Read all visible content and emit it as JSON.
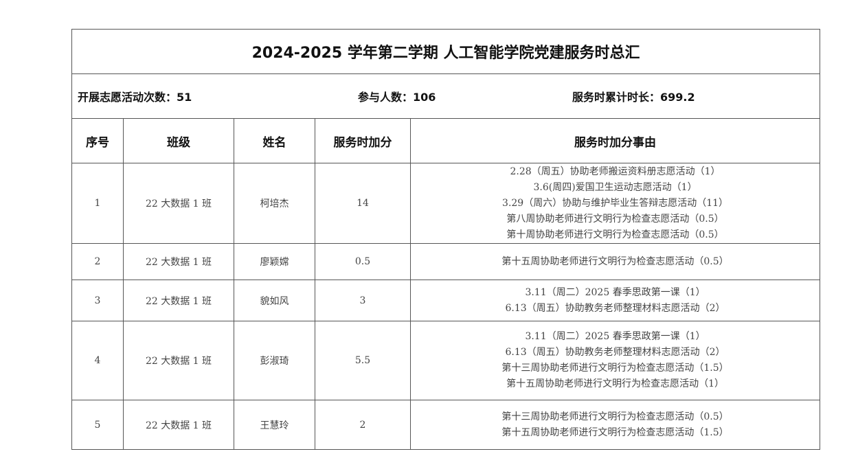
{
  "title": "2024-2025 学年第二学期 人工智能学院党建服务时总汇",
  "summary": {
    "activities_label": "开展志愿活动次数：",
    "activities_value": "51",
    "participants_label": "参与人数：",
    "participants_value": "106",
    "hours_label": "服务时累计时长：",
    "hours_value": "699.2"
  },
  "headers": [
    "序号",
    "班级",
    "姓名",
    "服务时加分",
    "服务时加分事由"
  ],
  "rows": [
    {
      "no": "1",
      "class": "22 大数据 1 班",
      "name": "柯培杰",
      "points": "14",
      "reasons": [
        "2.28（周五）协助老师搬运资料册志愿活动（1）",
        "3.6(周四)爱国卫生运动志愿活动（1）",
        "3.29（周六）协助与维护毕业生答辩志愿活动（11）",
        "第八周协助老师进行文明行为检查志愿活动（0.5）",
        "第十周协助老师进行文明行为检查志愿活动（0.5）"
      ]
    },
    {
      "no": "2",
      "class": "22 大数据 1 班",
      "name": "廖颖嫦",
      "points": "0.5",
      "reasons": [
        "第十五周协助老师进行文明行为检查志愿活动（0.5）"
      ]
    },
    {
      "no": "3",
      "class": "22 大数据 1 班",
      "name": "貌如风",
      "points": "3",
      "reasons": [
        "3.11（周二）2025 春季思政第一课（1）",
        "6.13（周五）协助教务老师整理材料志愿活动（2）"
      ]
    },
    {
      "no": "4",
      "class": "22 大数据 1 班",
      "name": "彭淑琦",
      "points": "5.5",
      "reasons": [
        "3.11（周二）2025 春季思政第一课（1）",
        "6.13（周五）协助教务老师整理材料志愿活动（2）",
        "第十三周协助老师进行文明行为检查志愿活动（1.5）",
        "第十五周协助老师进行文明行为检查志愿活动（1）"
      ]
    },
    {
      "no": "5",
      "class": "22 大数据 1 班",
      "name": "王慧玲",
      "points": "2",
      "reasons": [
        "第十三周协助老师进行文明行为检查志愿活动（0.5）",
        "第十五周协助老师进行文明行为检查志愿活动（1.5）"
      ]
    }
  ]
}
